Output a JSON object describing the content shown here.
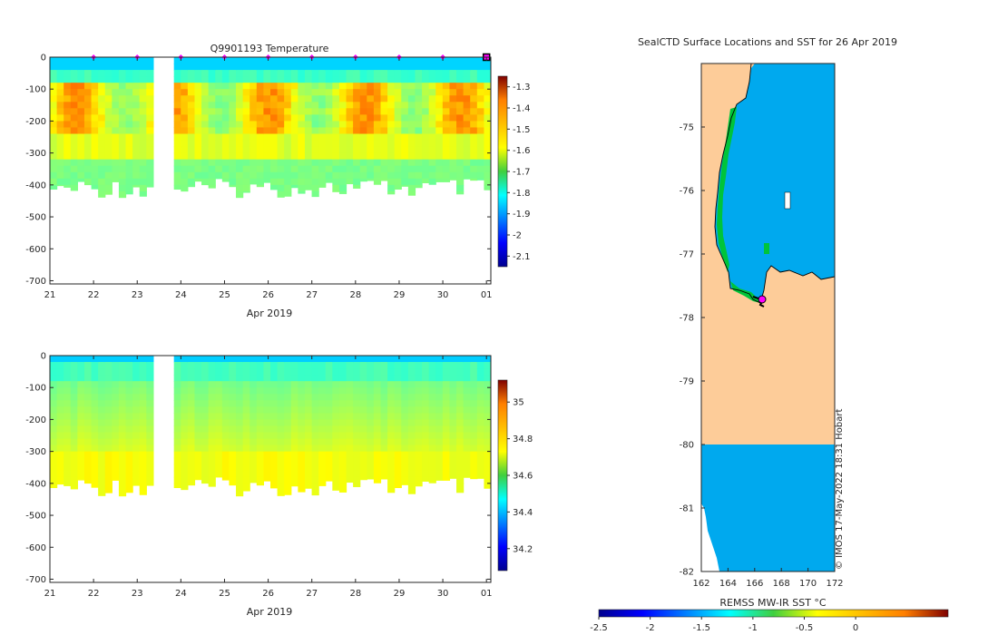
{
  "chart_data": [
    {
      "type": "heatmap",
      "title": "Q9901193  Temperature",
      "xlabel": "Apr 2019",
      "x_tick_labels": [
        "21",
        "22",
        "23",
        "24",
        "25",
        "26",
        "27",
        "28",
        "29",
        "30",
        "01"
      ],
      "x_range": [
        21,
        31.1
      ],
      "y_tick_labels": [
        "0",
        "-100",
        "-200",
        "-300",
        "-400",
        "-500",
        "-600",
        "-700"
      ],
      "y_range": [
        0,
        -710
      ],
      "colorbar_ticks": [
        "-1.3",
        "-1.4",
        "-1.5",
        "-1.6",
        "-1.7",
        "-1.8",
        "-1.9",
        "-2",
        "-2.1"
      ],
      "colorbar_range": [
        -2.15,
        -1.25
      ],
      "marker_days": [
        22,
        23,
        24,
        25,
        26,
        27,
        28,
        29,
        30
      ],
      "last_profile_day": 31,
      "gap_days": [
        23.4,
        23.8
      ]
    },
    {
      "type": "heatmap",
      "title": "",
      "xlabel": "Apr 2019",
      "x_tick_labels": [
        "21",
        "22",
        "23",
        "24",
        "25",
        "26",
        "27",
        "28",
        "29",
        "30",
        "01"
      ],
      "x_range": [
        21,
        31.1
      ],
      "y_tick_labels": [
        "0",
        "-100",
        "-200",
        "-300",
        "-400",
        "-500",
        "-600",
        "-700"
      ],
      "y_range": [
        0,
        -710
      ],
      "colorbar_ticks": [
        "35",
        "34.8",
        "34.6",
        "34.4",
        "34.2"
      ],
      "colorbar_range": [
        34.08,
        35.12
      ],
      "gap_days": [
        23.4,
        23.8
      ]
    },
    {
      "type": "heatmap",
      "title": "SealCTD Surface Locations and SST for 26 Apr 2019",
      "x_tick_labels": [
        "162",
        "164",
        "166",
        "168",
        "170",
        "172"
      ],
      "x_range": [
        162,
        172
      ],
      "y_tick_labels": [
        "-75",
        "-76",
        "-77",
        "-78",
        "-79",
        "-80",
        "-81",
        "-82"
      ],
      "y_range": [
        -74,
        -82
      ],
      "colorbar_label": "REMSS MW-IR SST °C",
      "colorbar_ticks": [
        "-2.5",
        "-2",
        "-1.5",
        "-1",
        "-0.5",
        "0"
      ],
      "colorbar_range": [
        -2.5,
        0.9
      ],
      "credit": "© IMOS 17-May-2022 18:31 Hobart",
      "colors": {
        "land": "#fdcc99",
        "ocean": "#00a9ee",
        "coast_green": "#00c43a",
        "marker": "#ff00ff"
      }
    }
  ]
}
